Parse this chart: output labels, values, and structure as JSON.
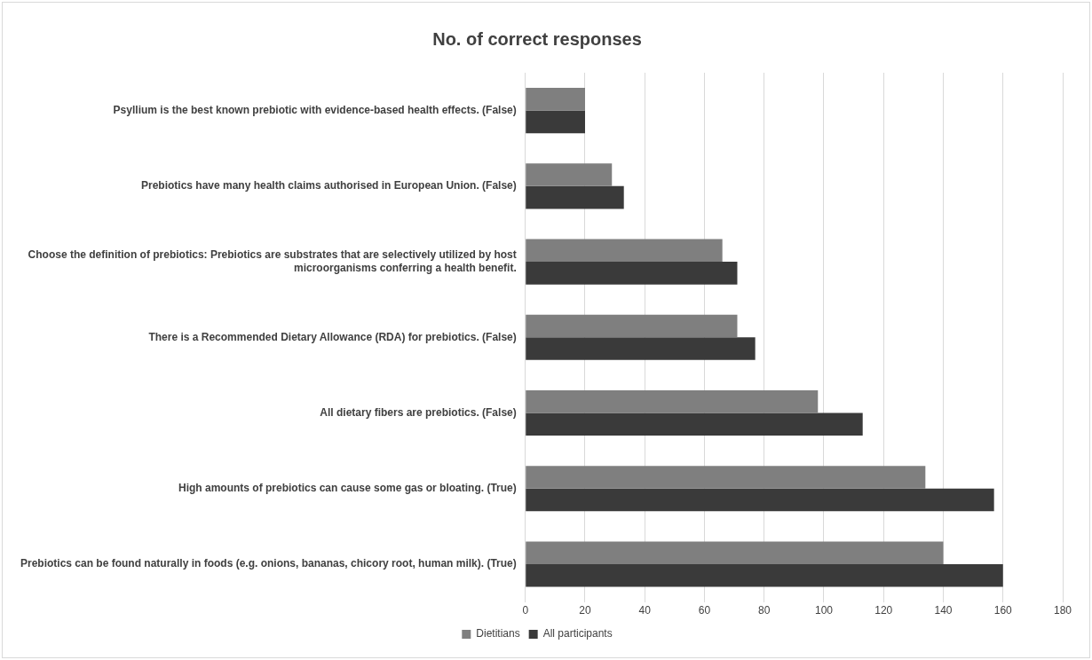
{
  "chart_data": {
    "type": "bar",
    "orientation": "horizontal",
    "title": "No. of correct responses",
    "categories": [
      "Psyllium is the best known prebiotic with evidence-based health effects. (False)",
      "Prebiotics have many health claims authorised in European Union. (False)",
      "Choose the definition of prebiotics: Prebiotics are substrates that are selectively utilized by host microorganisms conferring a health benefit.",
      "There is a Recommended Dietary Allowance (RDA) for prebiotics. (False)",
      "All dietary fibers are prebiotics. (False)",
      "High amounts of prebiotics can cause some gas or bloating. (True)",
      "Prebiotics can be found naturally in foods (e.g. onions, bananas, chicory root, human milk). (True)"
    ],
    "series": [
      {
        "name": "Dietitians",
        "color": "#7f7f7f",
        "values": [
          20,
          29,
          66,
          71,
          98,
          134,
          140
        ]
      },
      {
        "name": "All participants",
        "color": "#3a3a3a",
        "values": [
          20,
          33,
          71,
          77,
          113,
          157,
          160
        ]
      }
    ],
    "xlim": [
      0,
      180
    ],
    "xticks": [
      0,
      20,
      40,
      60,
      80,
      100,
      120,
      140,
      160,
      180
    ],
    "grid": "x",
    "legend": "bottom"
  }
}
